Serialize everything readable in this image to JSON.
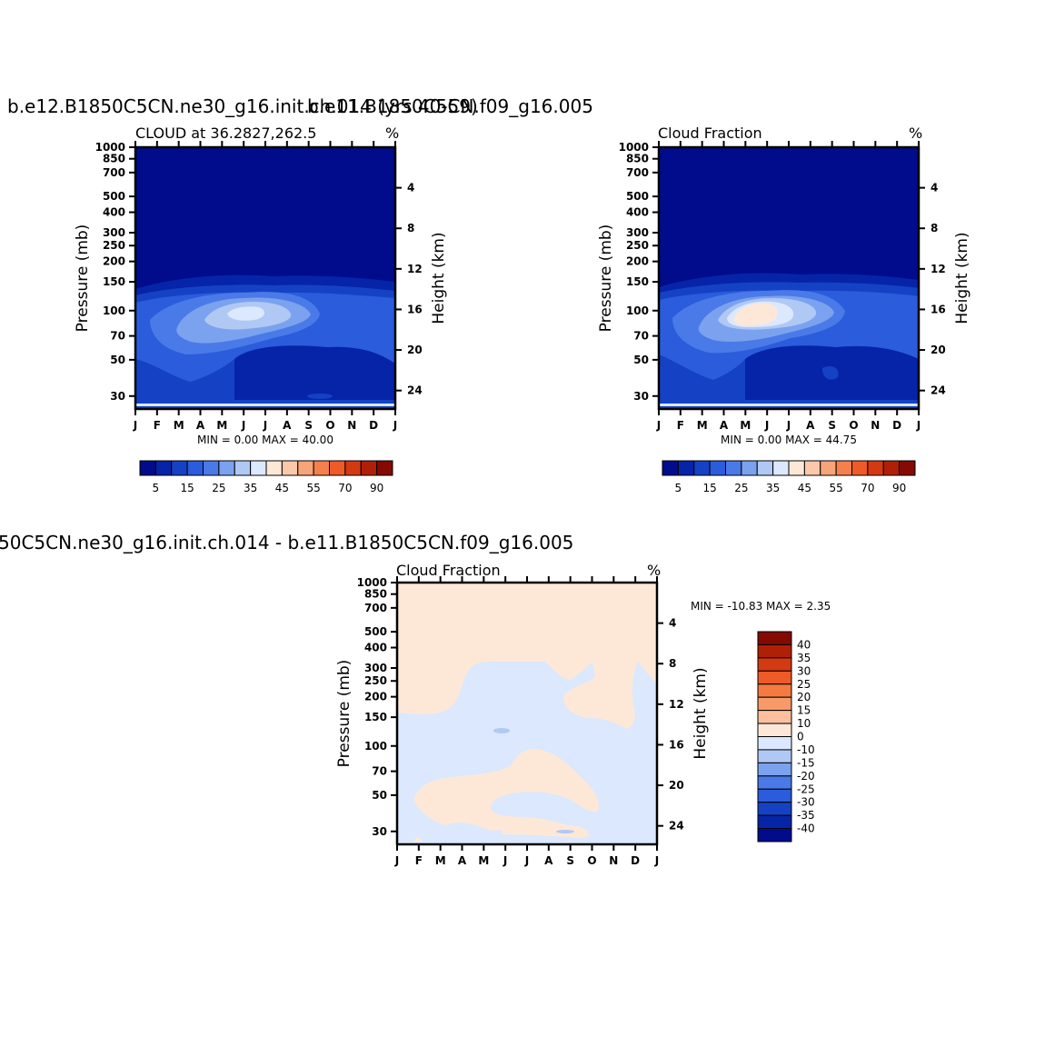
{
  "colors": {
    "dark_blue": "#000c8c",
    "deep_blue": "#0624a8",
    "blue1": "#1542c4",
    "blue2": "#2b5cdb",
    "blue3": "#4a7ae8",
    "blue4": "#7ba2ee",
    "blue5": "#b0c8f4",
    "blue6": "#dbe8fd",
    "peach": "#fde8d8",
    "orange_light": "#f7b594"
  },
  "panels": {
    "p1": {
      "title": "b.e12.B1850C5CN.ne30_g16.init.ch.014 (yrs 40-59)",
      "subtitle_left": "CLOUD at 36.2827,262.5",
      "subtitle_right": "%",
      "minmax": "MIN =    0.00 MAX =   40.00"
    },
    "p2": {
      "title": "b.e11.B1850C5CN.f09_g16.005",
      "subtitle_left": "Cloud Fraction",
      "subtitle_right": "%",
      "minmax": "MIN =    0.00 MAX =   44.75"
    },
    "p3": {
      "title": "50C5CN.ne30_g16.init.ch.014 - b.e11.B1850C5CN.f09_g16.005",
      "subtitle_left": "Cloud Fraction",
      "subtitle_right": "%",
      "minmax": "MIN = -10.83 MAX =    2.35"
    }
  },
  "chart_data": [
    {
      "type": "heatmap",
      "title": "b.e12.B1850C5CN.ne30_g16.init.ch.014 (yrs 40-59)",
      "subtitle": "CLOUD at 36.2827,262.5",
      "units": "%",
      "xlabel": "",
      "ylabel": "Pressure (mb)",
      "y2label": "Height (km)",
      "x_ticks": [
        "J",
        "F",
        "M",
        "A",
        "M",
        "J",
        "J",
        "A",
        "S",
        "O",
        "N",
        "D",
        "J"
      ],
      "y_ticks": [
        30,
        50,
        70,
        100,
        150,
        200,
        250,
        300,
        400,
        500,
        700,
        850,
        1000
      ],
      "y_scale": "log",
      "ylim": [
        1000,
        25
      ],
      "y2_ticks": [
        24,
        20,
        16,
        12,
        8,
        4
      ],
      "colorbar": [
        5,
        15,
        25,
        35,
        45,
        55,
        70,
        90
      ],
      "min": 0.0,
      "max": 40.0
    },
    {
      "type": "heatmap",
      "title": "b.e11.B1850C5CN.f09_g16.005",
      "subtitle": "Cloud Fraction",
      "units": "%",
      "xlabel": "",
      "ylabel": "Pressure (mb)",
      "y2label": "Height (km)",
      "x_ticks": [
        "J",
        "F",
        "M",
        "A",
        "M",
        "J",
        "J",
        "A",
        "S",
        "O",
        "N",
        "D",
        "J"
      ],
      "y_ticks": [
        30,
        50,
        70,
        100,
        150,
        200,
        250,
        300,
        400,
        500,
        700,
        850,
        1000
      ],
      "y_scale": "log",
      "ylim": [
        1000,
        25
      ],
      "y2_ticks": [
        24,
        20,
        16,
        12,
        8,
        4
      ],
      "colorbar": [
        5,
        15,
        25,
        35,
        45,
        55,
        70,
        90
      ],
      "min": 0.0,
      "max": 44.75
    },
    {
      "type": "heatmap",
      "title": "50C5CN.ne30_g16.init.ch.014 - b.e11.B1850C5CN.f09_g16.005",
      "subtitle": "Cloud Fraction",
      "units": "%",
      "xlabel": "",
      "ylabel": "Pressure (mb)",
      "y2label": "Height (km)",
      "x_ticks": [
        "J",
        "F",
        "M",
        "A",
        "M",
        "J",
        "J",
        "A",
        "S",
        "O",
        "N",
        "D",
        "J"
      ],
      "y_ticks": [
        30,
        50,
        70,
        100,
        150,
        200,
        250,
        300,
        400,
        500,
        700,
        850,
        1000
      ],
      "y_scale": "log",
      "ylim": [
        1000,
        25
      ],
      "y2_ticks": [
        24,
        20,
        16,
        12,
        8,
        4
      ],
      "colorbar": [
        40,
        35,
        30,
        25,
        20,
        15,
        10,
        0,
        -10,
        -15,
        -20,
        -25,
        -30,
        -35,
        -40
      ],
      "min": -10.83,
      "max": 2.35
    }
  ],
  "colorbar_colors": [
    "#000c8c",
    "#0624a8",
    "#1542c4",
    "#2b5cdb",
    "#4a7ae8",
    "#7ba2ee",
    "#b0c8f4",
    "#dbe8fd",
    "#fde8d8",
    "#fcc8aa",
    "#f7a47a",
    "#f4804e",
    "#ee5a28",
    "#d43a12",
    "#b02008",
    "#850a04"
  ],
  "diff_colorbar_colors": [
    "#850a04",
    "#b02008",
    "#d43a12",
    "#ee5a28",
    "#f47a40",
    "#f79a68",
    "#fcc0a0",
    "#fde8d8",
    "#dbe8fd",
    "#b0c8f4",
    "#7ba2ee",
    "#4a7ae8",
    "#2b5cdb",
    "#1542c4",
    "#0624a8",
    "#000c8c"
  ]
}
